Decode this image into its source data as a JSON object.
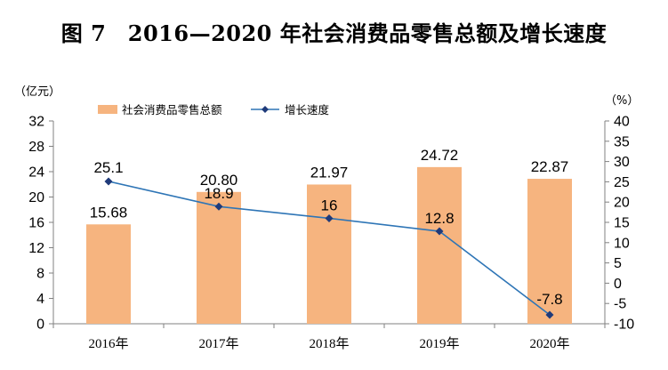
{
  "chart_data": {
    "type": "bar+line",
    "title": "图 7　2016—2020 年社会消费品零售总额及增长速度",
    "categories": [
      "2016年",
      "2017年",
      "2018年",
      "2019年",
      "2020年"
    ],
    "left_axis": {
      "unit": "（亿元）",
      "ylim": [
        0,
        32
      ],
      "ticks": [
        0,
        4,
        8,
        12,
        16,
        20,
        24,
        28,
        32
      ]
    },
    "right_axis": {
      "unit": "（%）",
      "ylim": [
        -10,
        40
      ],
      "ticks": [
        -10,
        -5,
        0,
        5,
        10,
        15,
        20,
        25,
        30,
        35,
        40
      ]
    },
    "series": [
      {
        "name": "社会消费品零售总额",
        "kind": "bar",
        "axis": "left",
        "color": "#F6B47F",
        "values": [
          15.68,
          20.8,
          21.97,
          24.72,
          22.87
        ],
        "labels": [
          "15.68",
          "20.80",
          "21.97",
          "24.72",
          "22.87"
        ]
      },
      {
        "name": "增长速度",
        "kind": "line",
        "axis": "right",
        "color": "#2E75B6",
        "marker_color": "#1F3A7A",
        "values": [
          25.1,
          18.9,
          16,
          12.8,
          -7.8
        ],
        "labels": [
          "25.1",
          "18.9",
          "16",
          "12.8",
          "-7.8"
        ]
      }
    ],
    "legend": "top-left",
    "grid": false
  }
}
